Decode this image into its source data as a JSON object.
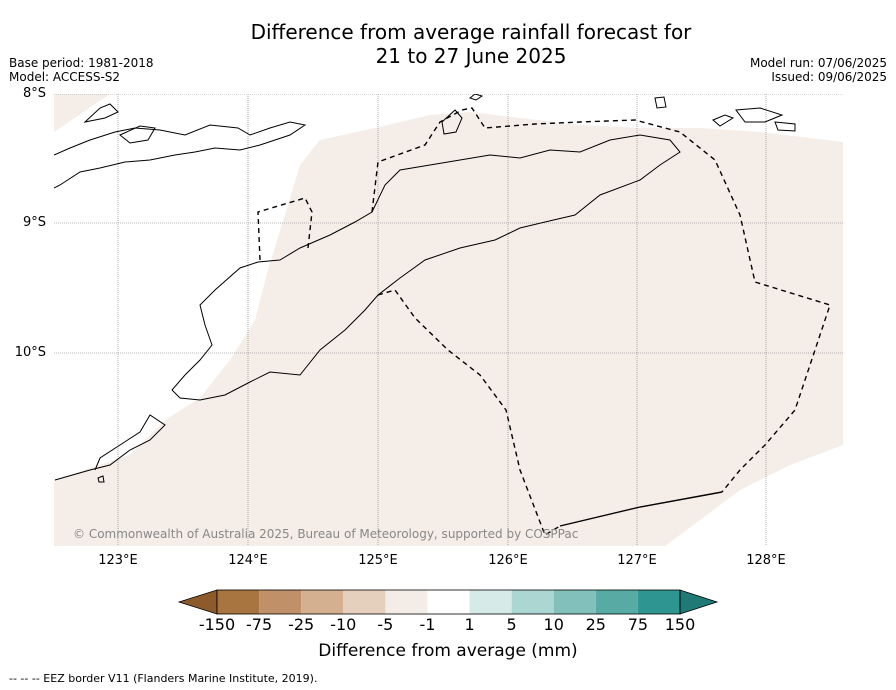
{
  "title_line1": "Difference from average rainfall forecast for",
  "title_line2": "21 to 27 June 2025",
  "meta_left": {
    "base_period": "Base period: 1981-2018",
    "model": "Model: ACCESS-S2"
  },
  "meta_right": {
    "model_run": "Model run: 07/06/2025",
    "issued": "Issued: 09/06/2025"
  },
  "lat_labels": [
    "8°S",
    "9°S",
    "10°S"
  ],
  "lon_labels": [
    "123°E",
    "124°E",
    "125°E",
    "126°E",
    "127°E",
    "128°E"
  ],
  "copyright": "© Commonwealth of Australia 2025, Bureau of Meteorology, supported by COSPPac",
  "colorbar": {
    "label": "Difference from average (mm)",
    "ticks": [
      "-150",
      "-75",
      "-25",
      "-10",
      "-5",
      "-1",
      "1",
      "5",
      "10",
      "25",
      "75",
      "150"
    ],
    "colors": [
      "#8c5a2b",
      "#a87440",
      "#c09068",
      "#d4b090",
      "#e4d0bc",
      "#f4ece6",
      "#ffffff",
      "#d6ebe8",
      "#acd6d2",
      "#82c0bb",
      "#58aaa5",
      "#2e9590",
      "#1f7a75"
    ]
  },
  "map": {
    "land_color": "#f4ede8",
    "shaded_category": "-1 to -5"
  },
  "footnote": "--  --  -- EEZ border V11 (Flanders Marine Institute, 2019)."
}
